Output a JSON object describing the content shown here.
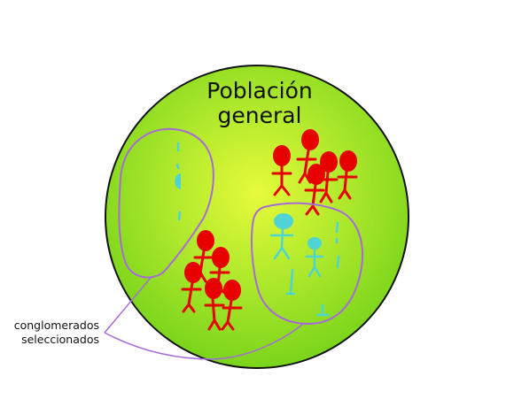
{
  "diagram": {
    "title_line1": "Población",
    "title_line2": "general",
    "callout_line1": "conglomerados",
    "callout_line2": "seleccionados"
  },
  "colors": {
    "population_fill_center": "#e6fb3a",
    "population_fill_edge": "#7cd61c",
    "population_stroke": "#111111",
    "figure_red": "#e60000",
    "figure_cyan": "#4fd3d3",
    "cluster_outline": "#a76ad8"
  }
}
